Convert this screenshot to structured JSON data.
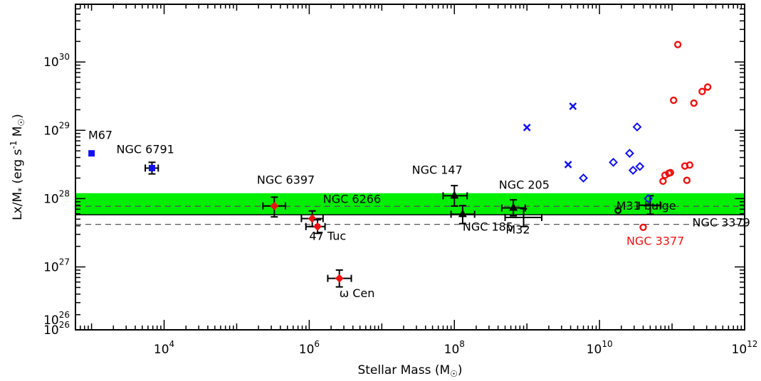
{
  "chart_data": {
    "type": "scatter",
    "xlabel": "Stellar Mass (M",
    "xlabel_suffix": ")",
    "ylabel": "Lx/M",
    "ylabel_sub": "*",
    "ylabel_rest": " (erg s",
    "ylabel_exp": "-1",
    "ylabel_tail": " M",
    "ylabel_end": ")",
    "x_scale": "log",
    "y_scale": "log",
    "xlim": [
      600,
      1000000000000.0
    ],
    "ylim": [
      1.2e+26,
      7e+30
    ],
    "x_ticks": [
      {
        "base": "10",
        "exp": "4",
        "value": 10000.0
      },
      {
        "base": "10",
        "exp": "6",
        "value": 1000000.0
      },
      {
        "base": "10",
        "exp": "8",
        "value": 100000000.0
      },
      {
        "base": "10",
        "exp": "10",
        "value": 10000000000.0
      },
      {
        "base": "10",
        "exp": "12",
        "value": 1000000000000.0
      }
    ],
    "y_ticks": [
      {
        "base": "10",
        "exp": "26",
        "value": 1e+26
      },
      {
        "base": "10",
        "exp": "27",
        "value": 1e+27
      },
      {
        "base": "10",
        "exp": "28",
        "value": 1e+28
      },
      {
        "base": "10",
        "exp": "29",
        "value": 1e+29
      },
      {
        "base": "10",
        "exp": "30",
        "value": 1e+30
      }
    ],
    "band": {
      "y_low": 5.8e+27,
      "y_high": 1.2e+28,
      "y_line": 5.8e+27,
      "color": "#00ee00"
    },
    "dashed_lines": [
      7.7e+27,
      4.2e+27
    ],
    "colors": {
      "blue": "#1111ee",
      "red": "#ee1111",
      "black": "#000000",
      "green": "#00ee00"
    },
    "points_with_errors": [
      {
        "label": "M67",
        "x": 1000,
        "y": 4.6e+28,
        "marker": "square",
        "color": "blue",
        "xerr": [
          1000,
          1000
        ],
        "yerr": [
          4.6e+28,
          4.6e+28
        ]
      },
      {
        "label": "NGC 6791",
        "x": 6800,
        "y": 2.8e+28,
        "marker": "square",
        "color": "blue",
        "xerr": [
          5500,
          8300
        ],
        "yerr": [
          2.3e+28,
          3.4e+28
        ]
      },
      {
        "label": "NGC 6397",
        "x": 330000.0,
        "y": 7.8e+27,
        "marker": "diamond",
        "color": "red",
        "xerr": [
          230000.0,
          470000.0
        ],
        "yerr": [
          5.4e+27,
          1.05e+28
        ]
      },
      {
        "label": "NGC 6266",
        "x": 1100000.0,
        "y": 5.1e+27,
        "marker": "diamond",
        "color": "red",
        "xerr": [
          780000.0,
          1550000.0
        ],
        "yerr": [
          3.9e+27,
          6.6e+27
        ]
      },
      {
        "label": "47 Tuc",
        "x": 1300000.0,
        "y": 3.9e+27,
        "marker": "diamond",
        "color": "red",
        "xerr": [
          900000.0,
          1650000.0
        ],
        "yerr": [
          3.1e+27,
          4.9e+27
        ]
      },
      {
        "label": "ω Cen",
        "x": 2600000.0,
        "y": 6.8e+26,
        "marker": "diamond",
        "color": "red",
        "xerr": [
          1800000.0,
          3800000.0
        ],
        "yerr": [
          5.1e+26,
          9e+26
        ]
      },
      {
        "label": "NGC 147",
        "x": 100000000.0,
        "y": 1.1e+28,
        "marker": "triangle",
        "color": "black",
        "xerr": [
          70000000.0,
          150000000.0
        ],
        "yerr": [
          7.8e+27,
          1.55e+28
        ]
      },
      {
        "label": "NGC 185",
        "x": 130000000.0,
        "y": 5.9e+27,
        "marker": "triangle",
        "color": "black",
        "xerr": [
          90000000.0,
          190000000.0
        ],
        "yerr": [
          4.3e+27,
          7.9e+27
        ]
      },
      {
        "label": "NGC 205",
        "x": 650000000.0,
        "y": 7.3e+27,
        "marker": "triangle",
        "color": "black",
        "xerr": [
          450000000.0,
          950000000.0
        ],
        "yerr": [
          5.6e+27,
          9.6e+27
        ]
      },
      {
        "label": "M32",
        "x": 900000000.0,
        "y": 5.3e+27,
        "marker": "none",
        "color": "black",
        "xerr": [
          500000000.0,
          1600000000.0
        ],
        "yerr": [
          3.9e+27,
          7.1e+27
        ]
      },
      {
        "label": "NGC 3379",
        "x": 50000000000.0,
        "y": 8e+27,
        "marker": "none",
        "color": "black",
        "xerr": [
          35000000000.0,
          70000000000.0
        ],
        "yerr": [
          5.9e+27,
          1.1e+28
        ]
      }
    ],
    "annotations": [
      {
        "text": "M67",
        "x": 900,
        "y": 7.5e+28,
        "color": "black"
      },
      {
        "text": "NGC 6791",
        "x": 2200,
        "y": 4.6e+28,
        "color": "black"
      },
      {
        "text": "NGC 6397",
        "x": 190000.0,
        "y": 1.65e+28,
        "color": "black"
      },
      {
        "text": "NGC 6266",
        "x": 1550000.0,
        "y": 8.6e+27,
        "color": "black"
      },
      {
        "text": "47 Tuc",
        "x": 1000000.0,
        "y": 2.5e+27,
        "color": "black"
      },
      {
        "text": "ω Cen",
        "x": 2600000.0,
        "y": 3.6e+26,
        "color": "black"
      },
      {
        "text": "NGC 147",
        "x": 26000000.0,
        "y": 2.3e+28,
        "color": "black"
      },
      {
        "text": "NGC 185",
        "x": 130000000.0,
        "y": 3.4e+27,
        "color": "black"
      },
      {
        "text": "NGC 205",
        "x": 410000000.0,
        "y": 1.4e+28,
        "color": "black"
      },
      {
        "text": "M32",
        "x": 510000000.0,
        "y": 3.1e+27,
        "color": "black"
      },
      {
        "text": "M31 bulge",
        "x": 17000000000.0,
        "y": 6.9e+27,
        "color": "black"
      },
      {
        "text": "NGC 3379",
        "x": 190000000000.0,
        "y": 3.9e+27,
        "color": "black"
      },
      {
        "text": "NGC 3377",
        "x": 23500000000.0,
        "y": 2.1e+27,
        "color": "red"
      }
    ],
    "m31_bulge": {
      "x": 18000000000.0,
      "y": 6.7e+27,
      "marker": "circle",
      "color": "black"
    },
    "blue_crosses": [
      {
        "x": 1000000000.0,
        "y": 1.1e+29
      },
      {
        "x": 4300000000.0,
        "y": 2.25e+29
      },
      {
        "x": 3700000000.0,
        "y": 3.15e+28
      }
    ],
    "blue_diamonds": [
      {
        "x": 6000000000.0,
        "y": 2e+28
      },
      {
        "x": 15500000000.0,
        "y": 3.4e+28
      },
      {
        "x": 26000000000.0,
        "y": 4.6e+28
      },
      {
        "x": 29000000000.0,
        "y": 2.6e+28
      },
      {
        "x": 33000000000.0,
        "y": 1.12e+29
      },
      {
        "x": 36000000000.0,
        "y": 2.95e+28
      },
      {
        "x": 47000000000.0,
        "y": 1e+28
      }
    ],
    "red_circles": [
      {
        "x": 40000000000.0,
        "y": 3.8e+27
      },
      {
        "x": 75000000000.0,
        "y": 1.8e+28
      },
      {
        "x": 80000000000.0,
        "y": 2.2e+28
      },
      {
        "x": 90000000000.0,
        "y": 2.35e+28
      },
      {
        "x": 95000000000.0,
        "y": 2.4e+28
      },
      {
        "x": 105000000000.0,
        "y": 2.75e+29
      },
      {
        "x": 120000000000.0,
        "y": 1.8e+30
      },
      {
        "x": 150000000000.0,
        "y": 3e+28
      },
      {
        "x": 160000000000.0,
        "y": 1.85e+28
      },
      {
        "x": 175000000000.0,
        "y": 3.1e+28
      },
      {
        "x": 200000000000.0,
        "y": 2.5e+29
      },
      {
        "x": 260000000000.0,
        "y": 3.7e+29
      },
      {
        "x": 310000000000.0,
        "y": 4.3e+29
      }
    ]
  }
}
